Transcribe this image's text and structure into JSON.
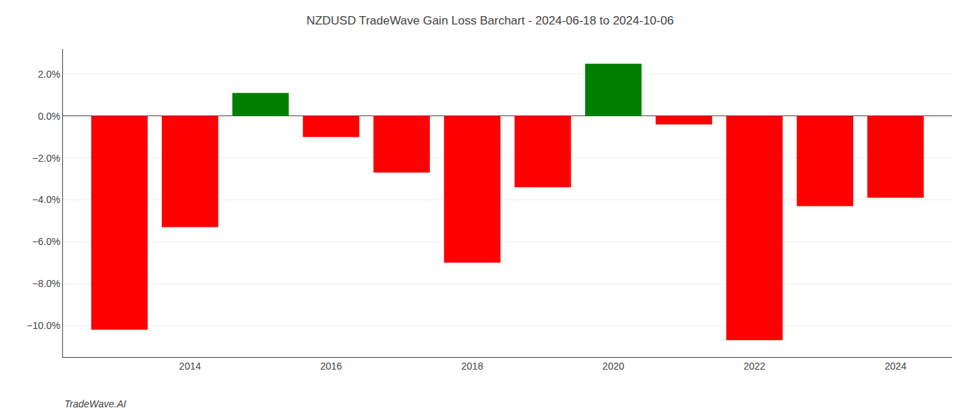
{
  "chart_data": {
    "type": "bar",
    "title": "NZDUSD TradeWave Gain Loss Barchart - 2024-06-18 to 2024-10-06",
    "annotations": [
      "TradeWave.AI"
    ],
    "x": [
      2013,
      2014,
      2015,
      2016,
      2017,
      2018,
      2019,
      2020,
      2021,
      2022,
      2023,
      2024
    ],
    "values": [
      -10.2,
      -5.3,
      1.1,
      -1.0,
      -2.7,
      -7.0,
      -3.4,
      2.5,
      -0.4,
      -10.7,
      -4.3,
      -3.9
    ],
    "colors": [
      "#ff0000",
      "#ff0000",
      "#008000",
      "#ff0000",
      "#ff0000",
      "#ff0000",
      "#ff0000",
      "#008000",
      "#ff0000",
      "#ff0000",
      "#ff0000",
      "#ff0000"
    ],
    "xlim": [
      2012.2,
      2024.8
    ],
    "xticks": [
      2014,
      2016,
      2018,
      2020,
      2022,
      2024
    ],
    "ylim": [
      -11.5,
      3.2
    ],
    "yticks": [
      {
        "value": -10.0,
        "label": "−10.0%"
      },
      {
        "value": -8.0,
        "label": "−8.0%"
      },
      {
        "value": -6.0,
        "label": "−6.0%"
      },
      {
        "value": -4.0,
        "label": "−4.0%"
      },
      {
        "value": -2.0,
        "label": "−2.0%"
      },
      {
        "value": 0.0,
        "label": "0.0%"
      },
      {
        "value": 2.0,
        "label": "2.0%"
      }
    ],
    "grid": true
  }
}
